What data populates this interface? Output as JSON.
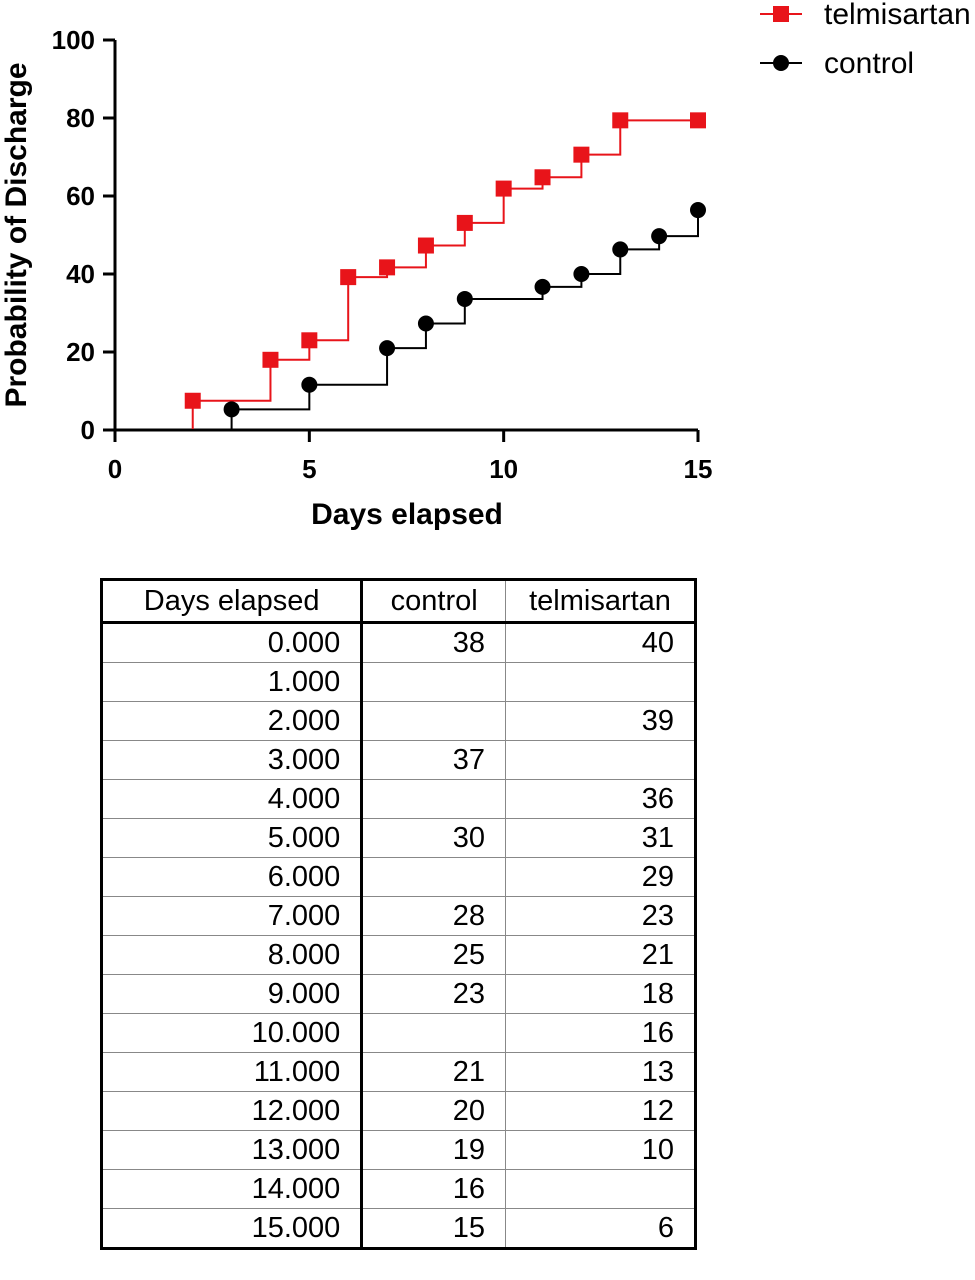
{
  "chart_data": {
    "type": "line",
    "step": true,
    "xlabel": "Days elapsed",
    "ylabel": "Probability of Discharge",
    "xlim": [
      0,
      15
    ],
    "ylim": [
      0,
      100
    ],
    "xticks": [
      "0",
      "5",
      "10",
      "15"
    ],
    "yticks": [
      "0",
      "20",
      "40",
      "60",
      "80",
      "100"
    ],
    "legend_position": "top-right",
    "series": [
      {
        "name": "telmisartan",
        "color": "#e8141a",
        "marker": "square",
        "x": [
          2,
          4,
          5,
          6,
          7,
          8,
          9,
          10,
          11,
          12,
          13,
          15
        ],
        "y": [
          7.5,
          18,
          23,
          39.2,
          41.7,
          47.3,
          53.1,
          61.9,
          64.8,
          70.6,
          79.4,
          79.4
        ]
      },
      {
        "name": "control",
        "color": "#000000",
        "marker": "circle",
        "x": [
          3,
          5,
          7,
          8,
          9,
          11,
          12,
          13,
          14,
          15
        ],
        "y": [
          5.3,
          11.6,
          21,
          27.3,
          33.6,
          36.7,
          40,
          46.3,
          49.7,
          56.4
        ]
      }
    ]
  },
  "table": {
    "headers": [
      "Days elapsed",
      "control",
      "telmisartan"
    ],
    "rows": [
      [
        "0.000",
        "38",
        "40"
      ],
      [
        "1.000",
        "",
        ""
      ],
      [
        "2.000",
        "",
        "39"
      ],
      [
        "3.000",
        "37",
        ""
      ],
      [
        "4.000",
        "",
        "36"
      ],
      [
        "5.000",
        "30",
        "31"
      ],
      [
        "6.000",
        "",
        "29"
      ],
      [
        "7.000",
        "28",
        "23"
      ],
      [
        "8.000",
        "25",
        "21"
      ],
      [
        "9.000",
        "23",
        "18"
      ],
      [
        "10.000",
        "",
        "16"
      ],
      [
        "11.000",
        "21",
        "13"
      ],
      [
        "12.000",
        "20",
        "12"
      ],
      [
        "13.000",
        "19",
        "10"
      ],
      [
        "14.000",
        "16",
        ""
      ],
      [
        "15.000",
        "15",
        "6"
      ]
    ]
  }
}
